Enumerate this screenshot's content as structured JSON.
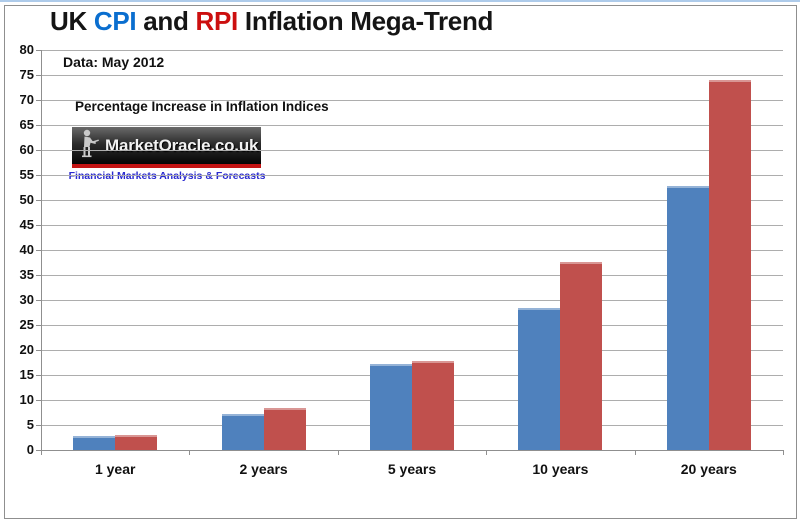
{
  "page": {
    "top_edge_color": "#aecbea",
    "frame_border_color": "#8f8f8f",
    "background": "#ffffff"
  },
  "title": {
    "full_text": "UK CPI and RPI Inflation Mega-Trend",
    "parts": [
      {
        "text": "UK ",
        "color": "#151515"
      },
      {
        "text": "CPI",
        "color": "#0a6ecf"
      },
      {
        "text": " and ",
        "color": "#151515"
      },
      {
        "text": "RPI",
        "color": "#cc0f0f"
      },
      {
        "text": " Inflation Mega-Trend",
        "color": "#151515"
      }
    ]
  },
  "annotations": {
    "data_note": "Data: May 2012",
    "subtitle": "Percentage Increase in Inflation Indices"
  },
  "logo": {
    "brand": "MarketOracle.co.uk",
    "tagline": "Financial Markets Analysis & Forecasts",
    "icon": "seated-reader-silhouette-icon",
    "banner_color": "#111111",
    "strip_color": "#c41414",
    "tagline_color": "#2b2bd0"
  },
  "chart_data": {
    "type": "bar",
    "title": "UK CPI and RPI Inflation Mega-Trend",
    "categories": [
      "1 year",
      "2 years",
      "5 years",
      "10 years",
      "20 years"
    ],
    "series": [
      {
        "name": "CPI",
        "color": "#4F81BD",
        "edge_color": "#95B3D7",
        "values": [
          2.8,
          7.3,
          17.2,
          28.4,
          52.8
        ]
      },
      {
        "name": "RPI",
        "color": "#C0504D",
        "edge_color": "#D99694",
        "values": [
          3.1,
          8.4,
          17.8,
          37.7,
          74.0
        ]
      }
    ],
    "xlabel": "",
    "ylabel": "",
    "ylim": [
      0,
      80
    ],
    "yticks": [
      0,
      5,
      10,
      15,
      20,
      25,
      30,
      35,
      40,
      45,
      50,
      55,
      60,
      65,
      70,
      75,
      80
    ],
    "grid": true,
    "gridline_color": "#adadad",
    "axis_color": "#8f8f8f",
    "legend_position": "none"
  }
}
